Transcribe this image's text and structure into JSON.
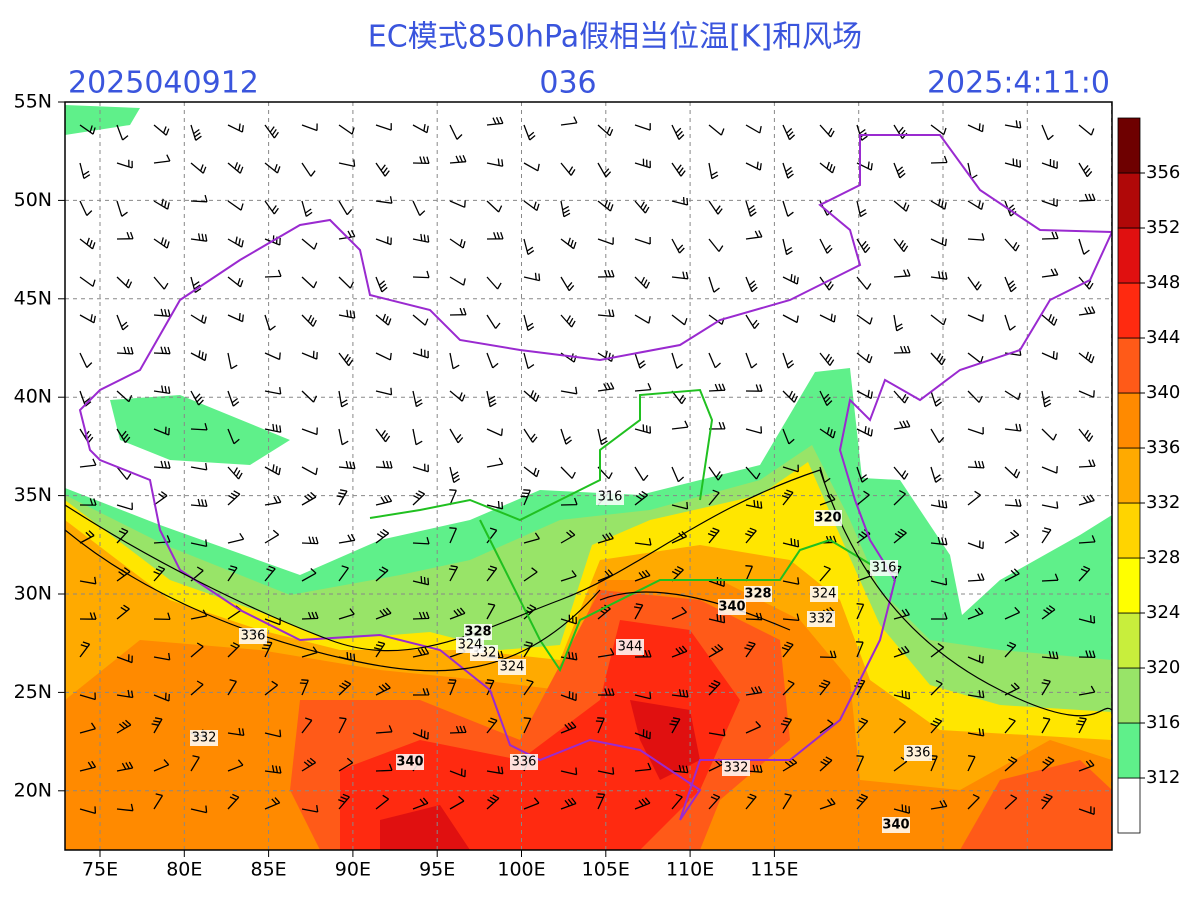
{
  "title": "EC模式850hPa假相当位温[K]和风场",
  "init": "2025040912",
  "lead": "036",
  "valid": "2025:4:11:0",
  "lat_labels": [
    "55N",
    "50N",
    "45N",
    "40N",
    "35N",
    "30N",
    "25N",
    "20N"
  ],
  "lon_labels": [
    "75E",
    "80E",
    "85E",
    "90E",
    "95E",
    "100E",
    "105E",
    "110E",
    "115E"
  ],
  "colorbar": {
    "levels": [
      312,
      316,
      320,
      324,
      328,
      332,
      336,
      340,
      344,
      348,
      352,
      356
    ],
    "colors": [
      "#ffffff",
      "#5ff08a",
      "#98e468",
      "#c8ee3c",
      "#ffff00",
      "#ffd400",
      "#ffaa00",
      "#ff8a00",
      "#ff5a18",
      "#ff2a10",
      "#e01010",
      "#b00808",
      "#6e0000"
    ]
  },
  "contour_labels": [
    "316",
    "320",
    "328",
    "324",
    "340",
    "332",
    "344",
    "336",
    "336",
    "332",
    "340",
    "336",
    "332",
    "340",
    "316",
    "324",
    "332",
    "328",
    "324"
  ]
}
